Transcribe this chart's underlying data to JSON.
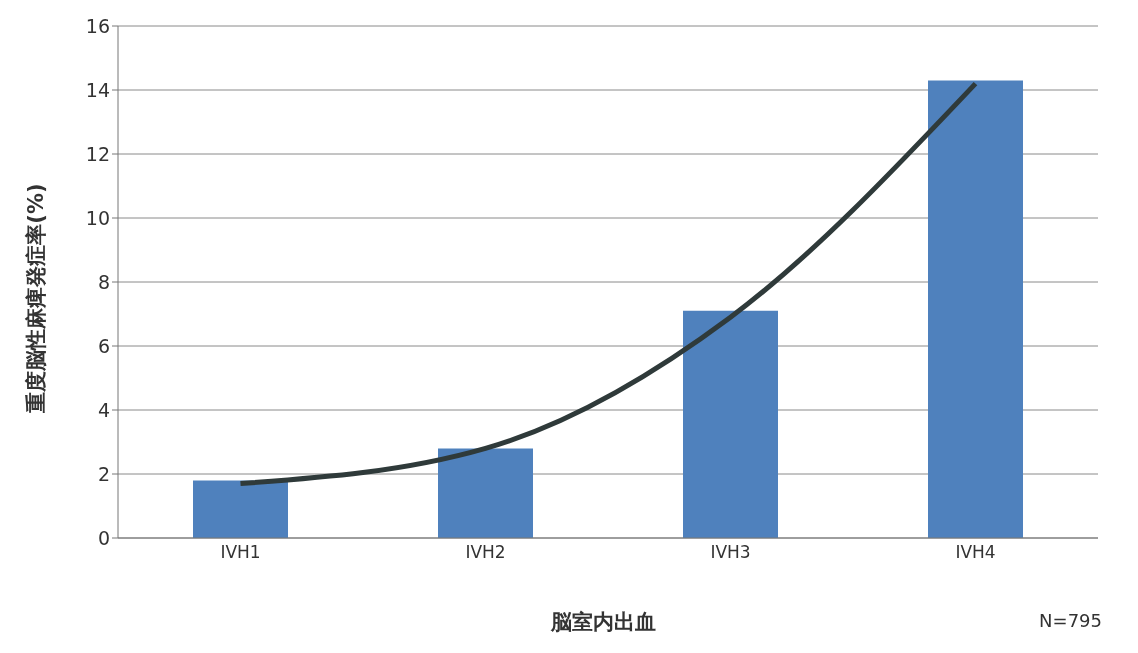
{
  "chart_data": {
    "type": "bar",
    "categories": [
      "IVH1",
      "IVH2",
      "IVH3",
      "IVH4"
    ],
    "series": [
      {
        "color": "#4f81bd",
        "values": [
          1.8,
          2.8,
          7.1,
          14.3
        ]
      },
      {
        "type": "line",
        "color": "#2f3a3a",
        "values": [
          1.7,
          2.8,
          6.9,
          14.2
        ]
      }
    ],
    "xlabel": "脳室内出血",
    "ylabel": "重度脳性麻痺発症率(%)",
    "annotations": [
      "N=795"
    ],
    "ylim": [
      0,
      16
    ],
    "yticks": [
      0,
      2,
      4,
      6,
      8,
      10,
      12,
      14,
      16
    ],
    "grid": "y",
    "legend": false,
    "marker": "none",
    "line_style": "solid"
  }
}
